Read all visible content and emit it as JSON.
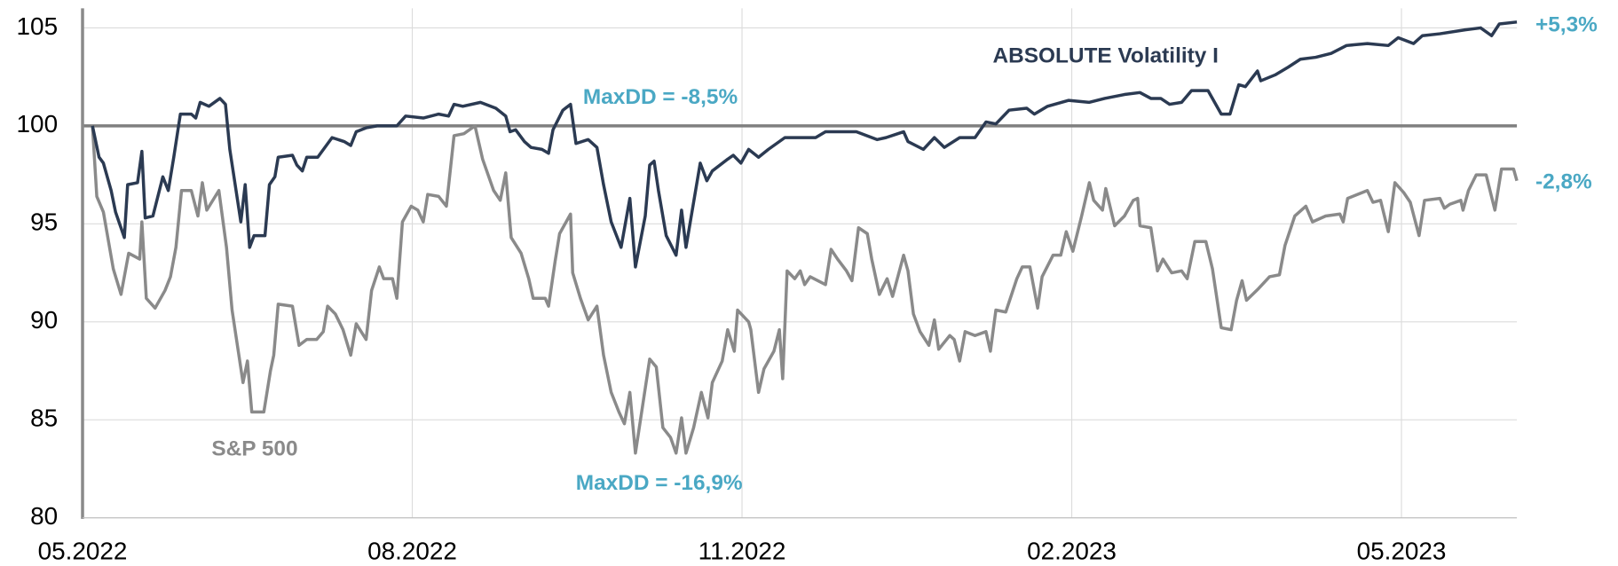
{
  "chart_data": {
    "type": "line",
    "xlim": [
      0,
      13.05
    ],
    "xticks": [
      {
        "value": 0,
        "label": "05.2022"
      },
      {
        "value": 3,
        "label": "08.2022"
      },
      {
        "value": 6,
        "label": "11.2022"
      },
      {
        "value": 9,
        "label": "02.2023"
      },
      {
        "value": 12,
        "label": "05.2023"
      }
    ],
    "ylim": [
      80,
      106
    ],
    "yticks": [
      80,
      85,
      90,
      95,
      100,
      105
    ],
    "reference_line": 100,
    "grid": true,
    "annotations": [
      "MaxDD = -8,5%",
      "MaxDD = -16,9%"
    ],
    "annotation_color": "#4aa8c4",
    "series": [
      {
        "name": "ABSOLUTE Volatility I",
        "color": "#2b3a52",
        "end_label": "+5,3%",
        "x": [
          0.09,
          0.15,
          0.19,
          0.26,
          0.3,
          0.38,
          0.41,
          0.5,
          0.54,
          0.57,
          0.64,
          0.73,
          0.78,
          0.83,
          0.89,
          0.99,
          1.03,
          1.07,
          1.15,
          1.25,
          1.3,
          1.34,
          1.44,
          1.48,
          1.52,
          1.56,
          1.66,
          1.7,
          1.75,
          1.78,
          1.91,
          1.95,
          2.0,
          2.04,
          2.14,
          2.27,
          2.38,
          2.44,
          2.49,
          2.58,
          2.68,
          2.86,
          2.94,
          3.1,
          3.24,
          3.33,
          3.38,
          3.46,
          3.62,
          3.76,
          3.85,
          3.89,
          3.94,
          4.02,
          4.08,
          4.18,
          4.24,
          4.28,
          4.37,
          4.44,
          4.49,
          4.6,
          4.68,
          4.74,
          4.81,
          4.9,
          4.98,
          5.03,
          5.12,
          5.16,
          5.2,
          5.24,
          5.31,
          5.4,
          5.45,
          5.49,
          5.62,
          5.68,
          5.73,
          5.87,
          5.92,
          5.99,
          6.06,
          6.15,
          6.24,
          6.39,
          6.67,
          6.76,
          7.04,
          7.23,
          7.31,
          7.47,
          7.51,
          7.65,
          7.75,
          7.84,
          7.98,
          8.12,
          8.22,
          8.31,
          8.43,
          8.59,
          8.66,
          8.78,
          8.97,
          9.16,
          9.3,
          9.48,
          9.62,
          9.72,
          9.81,
          9.89,
          10.0,
          10.09,
          10.24,
          10.36,
          10.44,
          10.52,
          10.58,
          10.69,
          10.72,
          10.85,
          10.97,
          11.08,
          11.22,
          11.36,
          11.5,
          11.69,
          11.88,
          11.97,
          12.11,
          12.19,
          12.35,
          12.58,
          12.72,
          12.82,
          12.89,
          13.05
        ],
        "values": [
          100,
          98.4,
          98.1,
          96.7,
          95.6,
          94.3,
          97,
          97.1,
          98.7,
          95.3,
          95.4,
          97.4,
          96.7,
          98.4,
          100.6,
          100.6,
          100.4,
          101.2,
          101,
          101.4,
          101.1,
          98.8,
          95.1,
          97,
          93.8,
          94.4,
          94.4,
          97,
          97.4,
          98.4,
          98.5,
          98,
          97.7,
          98.4,
          98.4,
          99.4,
          99.2,
          99,
          99.7,
          99.9,
          100,
          100,
          100.5,
          100.4,
          100.6,
          100.5,
          101.1,
          101,
          101.2,
          100.9,
          100.5,
          99.7,
          99.8,
          99.2,
          98.9,
          98.8,
          98.6,
          99.8,
          100.8,
          101.1,
          99.1,
          99.3,
          98.9,
          97,
          95.1,
          93.8,
          96.3,
          92.8,
          95.4,
          98,
          98.2,
          96.7,
          94.4,
          93.4,
          95.7,
          93.8,
          98.1,
          97.2,
          97.7,
          98.3,
          98.5,
          98.1,
          98.8,
          98.4,
          98.8,
          99.4,
          99.4,
          99.7,
          99.7,
          99.3,
          99.4,
          99.7,
          99.2,
          98.8,
          99.4,
          98.9,
          99.4,
          99.4,
          100.2,
          100.1,
          100.8,
          100.9,
          100.6,
          101,
          101.3,
          101.2,
          101.4,
          101.6,
          101.7,
          101.4,
          101.4,
          101.1,
          101.2,
          101.8,
          101.8,
          100.6,
          100.6,
          102.1,
          102,
          102.8,
          102.3,
          102.6,
          103,
          103.4,
          103.5,
          103.7,
          104.1,
          104.2,
          104.1,
          104.5,
          104.2,
          104.6,
          104.7,
          104.9,
          105,
          104.6,
          105.2,
          105.3
        ]
      },
      {
        "name": "S&P 500",
        "color": "#8a8a8a",
        "end_label": "-2,8%",
        "x": [
          0.09,
          0.13,
          0.19,
          0.28,
          0.35,
          0.42,
          0.52,
          0.54,
          0.58,
          0.66,
          0.75,
          0.8,
          0.85,
          0.9,
          0.99,
          1.05,
          1.09,
          1.13,
          1.24,
          1.31,
          1.36,
          1.46,
          1.5,
          1.54,
          1.65,
          1.71,
          1.74,
          1.78,
          1.91,
          1.97,
          2.04,
          2.13,
          2.19,
          2.23,
          2.3,
          2.37,
          2.44,
          2.49,
          2.58,
          2.63,
          2.7,
          2.74,
          2.82,
          2.86,
          2.91,
          2.99,
          3.05,
          3.1,
          3.14,
          3.24,
          3.31,
          3.38,
          3.47,
          3.57,
          3.64,
          3.74,
          3.8,
          3.85,
          3.9,
          3.99,
          4.06,
          4.1,
          4.21,
          4.24,
          4.3,
          4.34,
          4.44,
          4.46,
          4.53,
          4.6,
          4.68,
          4.74,
          4.81,
          4.88,
          4.93,
          4.98,
          5.03,
          5.16,
          5.22,
          5.28,
          5.35,
          5.4,
          5.45,
          5.49,
          5.56,
          5.63,
          5.69,
          5.73,
          5.82,
          5.87,
          5.93,
          5.96,
          6.06,
          6.08,
          6.15,
          6.2,
          6.29,
          6.34,
          6.37,
          6.41,
          6.48,
          6.53,
          6.57,
          6.62,
          6.76,
          6.81,
          6.87,
          6.95,
          7.0,
          7.06,
          7.14,
          7.18,
          7.25,
          7.32,
          7.37,
          7.47,
          7.51,
          7.56,
          7.62,
          7.7,
          7.75,
          7.79,
          7.89,
          7.93,
          7.98,
          8.03,
          8.12,
          8.22,
          8.26,
          8.31,
          8.4,
          8.5,
          8.55,
          8.62,
          8.69,
          8.73,
          8.83,
          8.9,
          8.95,
          9.01,
          9.09,
          9.16,
          9.2,
          9.28,
          9.31,
          9.39,
          9.48,
          9.56,
          9.6,
          9.62,
          9.72,
          9.78,
          9.83,
          9.91,
          10.0,
          10.05,
          10.12,
          10.22,
          10.28,
          10.36,
          10.45,
          10.5,
          10.55,
          10.59,
          10.7,
          10.8,
          10.89,
          10.94,
          11.03,
          11.13,
          11.19,
          11.31,
          11.44,
          11.47,
          11.51,
          11.69,
          11.74,
          11.81,
          11.88,
          11.94,
          12.02,
          12.08,
          12.16,
          12.21,
          12.35,
          12.39,
          12.44,
          12.54,
          12.56,
          12.61,
          12.68,
          12.77,
          12.85,
          12.91,
          13.02,
          13.05
        ],
        "values": [
          100,
          96.4,
          95.6,
          92.7,
          91.4,
          93.5,
          93.2,
          95.1,
          91.2,
          90.7,
          91.6,
          92.3,
          93.8,
          96.7,
          96.7,
          95.4,
          97.1,
          95.7,
          96.7,
          93.8,
          90.6,
          86.9,
          88,
          85.4,
          85.4,
          87.5,
          88.3,
          90.9,
          90.8,
          88.8,
          89.1,
          89.1,
          89.5,
          90.8,
          90.4,
          89.6,
          88.3,
          89.9,
          89.1,
          91.6,
          92.8,
          92.2,
          92.2,
          91.2,
          95.1,
          95.9,
          95.7,
          95.1,
          96.5,
          96.4,
          95.9,
          99.5,
          99.6,
          100,
          98.3,
          96.7,
          96.2,
          97.6,
          94.3,
          93.5,
          92.2,
          91.2,
          91.2,
          90.8,
          93.1,
          94.5,
          95.5,
          92.5,
          91.2,
          90.1,
          90.8,
          88.3,
          86.4,
          85.4,
          84.8,
          86.4,
          83.3,
          88.1,
          87.7,
          84.6,
          84.1,
          83.3,
          85.1,
          83.3,
          84.6,
          86.4,
          85.1,
          86.9,
          88,
          89.6,
          88.5,
          90.6,
          90,
          89.6,
          86.4,
          87.6,
          88.5,
          89.6,
          87.1,
          92.6,
          92.2,
          92.6,
          91.9,
          92.3,
          91.9,
          93.7,
          93.2,
          92.6,
          92.1,
          94.8,
          94.5,
          93.2,
          91.4,
          92.2,
          91.3,
          93.4,
          92.6,
          90.4,
          89.5,
          88.8,
          90.1,
          88.6,
          89.3,
          89.1,
          88,
          89.5,
          89.3,
          89.5,
          88.5,
          90.6,
          90.5,
          92.2,
          92.8,
          92.8,
          90.7,
          92.3,
          93.4,
          93.4,
          94.6,
          93.6,
          95.4,
          97.1,
          96.2,
          95.7,
          96.8,
          94.9,
          95.4,
          96.2,
          96.3,
          94.9,
          94.8,
          92.6,
          93.2,
          92.5,
          92.6,
          92.2,
          94.1,
          94.1,
          92.7,
          89.7,
          89.6,
          91.1,
          92.1,
          91.1,
          91.7,
          92.3,
          92.4,
          93.9,
          95.4,
          95.9,
          95.1,
          95.4,
          95.5,
          95.1,
          96.3,
          96.7,
          96.1,
          96.2,
          94.6,
          97.1,
          96.6,
          96.1,
          94.4,
          96.2,
          96.3,
          95.8,
          96,
          96.2,
          95.7,
          96.7,
          97.5,
          97.5,
          95.7,
          97.8,
          97.8,
          97.2
        ]
      }
    ]
  }
}
